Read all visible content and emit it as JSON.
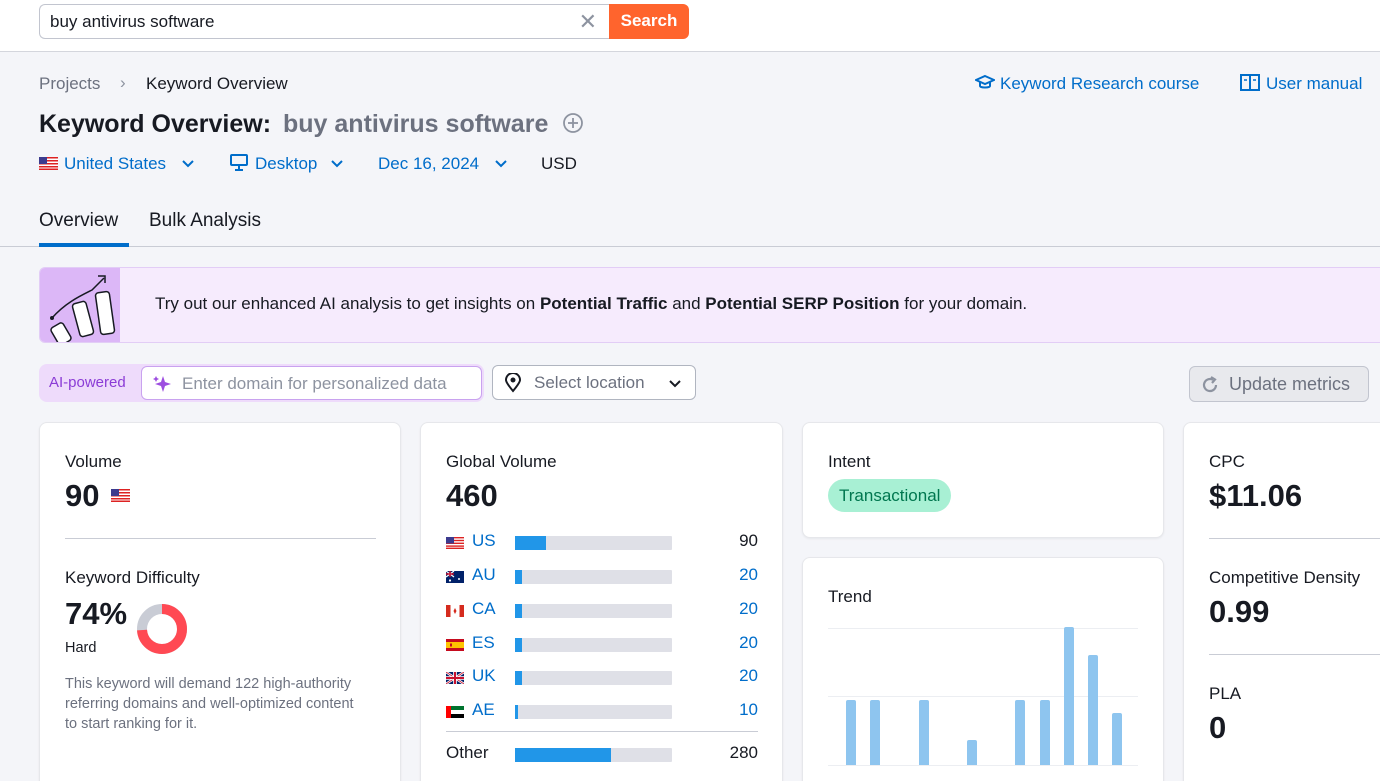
{
  "search": {
    "value": "buy antivirus software",
    "button": "Search"
  },
  "breadcrumb": {
    "root": "Projects",
    "current": "Keyword Overview"
  },
  "header_links": {
    "course": "Keyword Research course",
    "manual": "User manual"
  },
  "title": {
    "prefix": "Keyword Overview:",
    "keyword": "buy antivirus software"
  },
  "filters": {
    "country": "United States",
    "device": "Desktop",
    "date": "Dec 16, 2024",
    "currency": "USD"
  },
  "tabs": [
    {
      "label": "Overview",
      "active": true
    },
    {
      "label": "Bulk Analysis",
      "active": false
    }
  ],
  "banner": {
    "text_1": "Try out our enhanced AI analysis to get insights on ",
    "bold_1": "Potential Traffic",
    "text_2": " and ",
    "bold_2": "Potential SERP Position",
    "text_3": " for your domain."
  },
  "ai": {
    "label": "AI-powered",
    "placeholder": "Enter domain for personalized data",
    "location_placeholder": "Select location",
    "update_button": "Update metrics"
  },
  "volume": {
    "label": "Volume",
    "value": "90"
  },
  "difficulty": {
    "label": "Keyword Difficulty",
    "value": "74%",
    "percent": 74,
    "level": "Hard",
    "description": "This keyword will demand 122 high-authority referring domains and well-optimized content to start ranking for it.",
    "color": "#ff4953"
  },
  "global_volume": {
    "label": "Global Volume",
    "value": "460",
    "rows": [
      {
        "code": "US",
        "value": "90",
        "share": 0.196
      },
      {
        "code": "AU",
        "value": "20",
        "share": 0.043
      },
      {
        "code": "CA",
        "value": "20",
        "share": 0.043
      },
      {
        "code": "ES",
        "value": "20",
        "share": 0.043
      },
      {
        "code": "UK",
        "value": "20",
        "share": 0.043
      },
      {
        "code": "AE",
        "value": "10",
        "share": 0.022
      }
    ],
    "other": {
      "label": "Other",
      "value": "280",
      "share": 0.609
    }
  },
  "intent": {
    "label": "Intent",
    "value": "Transactional"
  },
  "trend": {
    "label": "Trend",
    "values": [
      0.47,
      0.47,
      0,
      0.47,
      0,
      0.18,
      0,
      0.47,
      0.47,
      1.0,
      0.8,
      0.38
    ]
  },
  "cpc": {
    "label": "CPC",
    "value": "$11.06"
  },
  "competitive_density": {
    "label": "Competitive Density",
    "value": "0.99"
  },
  "pla": {
    "label": "PLA",
    "value": "0"
  },
  "colors": {
    "accent": "#006dca",
    "brand_orange": "#ff642d",
    "bar_blue": "#2196e8"
  }
}
